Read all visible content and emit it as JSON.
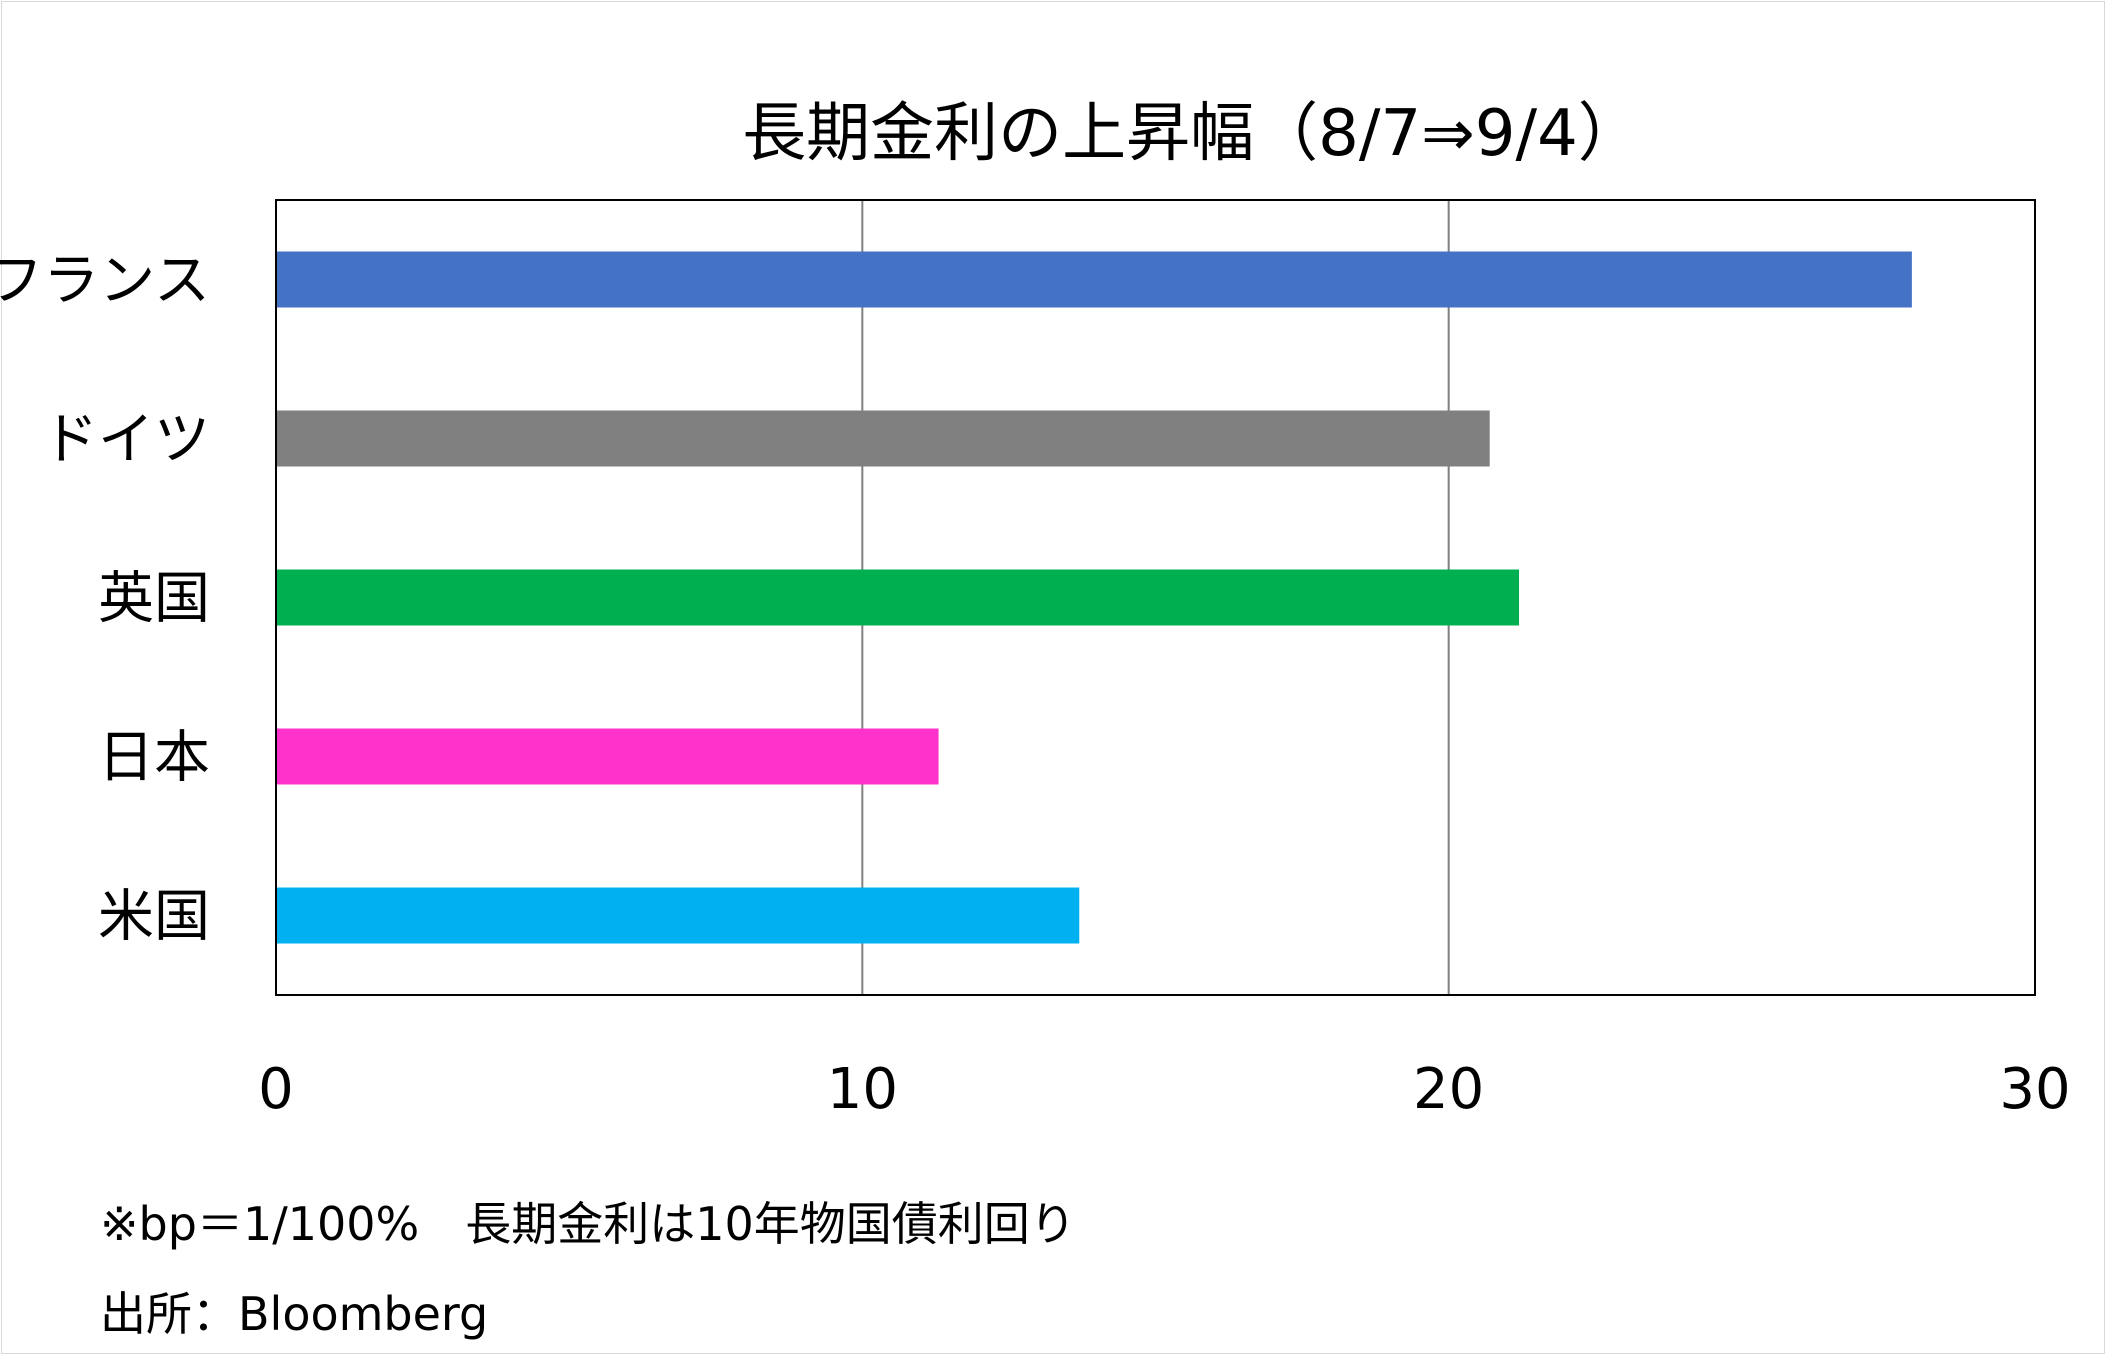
{
  "chart_data": {
    "type": "bar",
    "orientation": "horizontal",
    "title": "長期金利の上昇幅（8/7⇒9/4）",
    "categories": [
      "フランス",
      "ドイツ",
      "英国",
      "日本",
      "米国"
    ],
    "values": [
      27.9,
      20.7,
      21.2,
      11.3,
      13.7
    ],
    "colors": [
      "#4472c4",
      "#808080",
      "#00b050",
      "#ff33cc",
      "#00b0f0"
    ],
    "xlim": [
      0,
      30
    ],
    "xticks": [
      "0",
      "10",
      "20",
      "30"
    ],
    "xtick_values": [
      0,
      10,
      20,
      30
    ],
    "grid": "vertical",
    "legend": "none"
  },
  "notes": {
    "unit_note": "※bp＝1/100%　長期金利は10年物国債利回り",
    "source": "出所：Bloomberg"
  }
}
